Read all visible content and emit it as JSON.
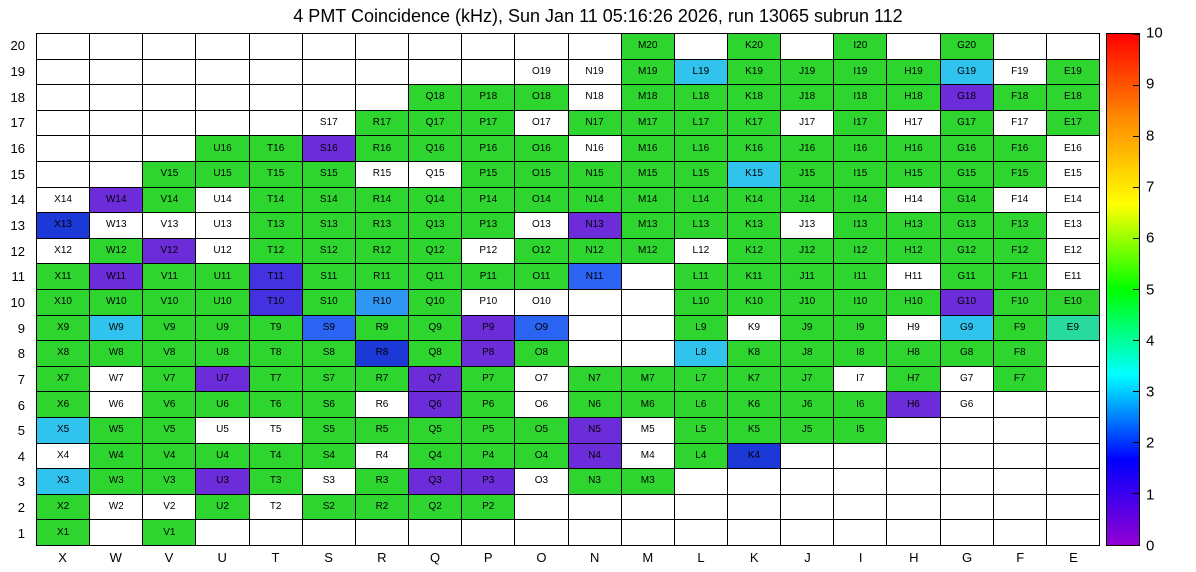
{
  "title": "4 PMT Coincidence (kHz), Sun Jan 11 05:16:26 2026, run 13065 subrun 112",
  "chart_data": {
    "type": "heatmap",
    "title": "4 PMT Coincidence (kHz), Sun Jan 11 05:16:26 2026, run 13065 subrun 112",
    "xlabel": "",
    "ylabel": "",
    "units": "kHz",
    "grid_lines": true,
    "legend_position": "right-colorbar",
    "columns": [
      "X",
      "W",
      "V",
      "U",
      "T",
      "S",
      "R",
      "Q",
      "P",
      "O",
      "N",
      "M",
      "L",
      "K",
      "J",
      "I",
      "H",
      "G",
      "F",
      "E"
    ],
    "colorbar": {
      "min": 0,
      "max": 10,
      "ticks": [
        0,
        1,
        2,
        3,
        4,
        5,
        6,
        7,
        8,
        9,
        10
      ],
      "gradient_stops": [
        "#9400d3",
        "#0000ff",
        "#00ffff",
        "#00ff00",
        "#ffff00",
        "#ff8c00",
        "#ff0000"
      ]
    },
    "classes": {
      "g": {
        "name": "green",
        "color": "#2ed52e",
        "value": 5.5
      },
      "t": {
        "name": "teal",
        "color": "#28d9a0",
        "value": 4.0
      },
      "c": {
        "name": "cyan",
        "color": "#2fc3ee",
        "value": 3.0
      },
      "s": {
        "name": "sky-blue",
        "color": "#2f96f2",
        "value": 2.5
      },
      "b": {
        "name": "blue",
        "color": "#2b63f2",
        "value": 2.0
      },
      "n": {
        "name": "dark-blue",
        "color": "#1c39d8",
        "value": 1.5
      },
      "i": {
        "name": "indigo",
        "color": "#4431e0",
        "value": 1.0
      },
      "v": {
        "name": "violet",
        "color": "#6d2cd9",
        "value": 0.5
      },
      "w": {
        "name": "white",
        "color": "#ffffff",
        "value": 0
      }
    },
    "rows": [
      {
        "y": 20,
        "cells": [
          null,
          null,
          null,
          null,
          null,
          null,
          null,
          null,
          null,
          null,
          null,
          "g",
          null,
          "g",
          null,
          "g",
          null,
          "g",
          null,
          null
        ]
      },
      {
        "y": 19,
        "cells": [
          null,
          null,
          null,
          null,
          null,
          null,
          null,
          null,
          null,
          "w",
          "w",
          "g",
          "c",
          "g",
          "g",
          "g",
          "g",
          "c",
          "w",
          "g"
        ]
      },
      {
        "y": 18,
        "cells": [
          null,
          null,
          null,
          null,
          null,
          null,
          null,
          "g",
          "g",
          "g",
          "w",
          "g",
          "g",
          "g",
          "g",
          "g",
          "g",
          "v",
          "g",
          "g"
        ]
      },
      {
        "y": 17,
        "cells": [
          null,
          null,
          null,
          null,
          null,
          "w",
          "g",
          "g",
          "g",
          "w",
          "g",
          "g",
          "g",
          "g",
          "w",
          "g",
          "w",
          "g",
          "w",
          "g"
        ]
      },
      {
        "y": 16,
        "cells": [
          null,
          null,
          null,
          "g",
          "g",
          "v",
          "g",
          "g",
          "g",
          "g",
          "w",
          "g",
          "g",
          "g",
          "g",
          "g",
          "g",
          "g",
          "g",
          "w"
        ]
      },
      {
        "y": 15,
        "cells": [
          null,
          null,
          "g",
          "g",
          "g",
          "g",
          "w",
          "w",
          "g",
          "g",
          "g",
          "g",
          "g",
          "c",
          "g",
          "g",
          "g",
          "g",
          "g",
          "w"
        ]
      },
      {
        "y": 14,
        "cells": [
          "w",
          "v",
          "g",
          "w",
          "g",
          "g",
          "g",
          "g",
          "g",
          "g",
          "g",
          "g",
          "g",
          "g",
          "g",
          "g",
          "w",
          "g",
          "w",
          "w"
        ]
      },
      {
        "y": 13,
        "cells": [
          "n",
          "w",
          "w",
          "w",
          "g",
          "g",
          "g",
          "g",
          "g",
          "w",
          "v",
          "g",
          "g",
          "g",
          "w",
          "g",
          "g",
          "g",
          "g",
          "w"
        ]
      },
      {
        "y": 12,
        "cells": [
          "w",
          "g",
          "v",
          "w",
          "g",
          "g",
          "g",
          "g",
          "w",
          "g",
          "g",
          "g",
          "w",
          "g",
          "g",
          "g",
          "g",
          "g",
          "g",
          "w"
        ]
      },
      {
        "y": 11,
        "cells": [
          "g",
          "v",
          "g",
          "g",
          "i",
          "g",
          "g",
          "g",
          "g",
          "g",
          "b",
          null,
          "g",
          "g",
          "g",
          "g",
          "w",
          "g",
          "g",
          "w"
        ]
      },
      {
        "y": 10,
        "cells": [
          "g",
          "g",
          "g",
          "g",
          "i",
          "g",
          "s",
          "g",
          "w",
          "w",
          null,
          null,
          "g",
          "g",
          "g",
          "g",
          "g",
          "v",
          "g",
          "g"
        ]
      },
      {
        "y": 9,
        "cells": [
          "g",
          "c",
          "g",
          "g",
          "g",
          "b",
          "g",
          "g",
          "v",
          "b",
          null,
          null,
          "g",
          "w",
          "g",
          "g",
          "w",
          "c",
          "g",
          "t"
        ]
      },
      {
        "y": 8,
        "cells": [
          "g",
          "g",
          "g",
          "g",
          "g",
          "g",
          "n",
          "g",
          "v",
          "g",
          null,
          null,
          "c",
          "g",
          "g",
          "g",
          "g",
          "g",
          "g",
          null
        ]
      },
      {
        "y": 7,
        "cells": [
          "g",
          "w",
          "g",
          "v",
          "g",
          "g",
          "g",
          "v",
          "g",
          "w",
          "g",
          "g",
          "g",
          "g",
          "g",
          "w",
          "g",
          "w",
          "g",
          null
        ]
      },
      {
        "y": 6,
        "cells": [
          "g",
          "w",
          "g",
          "g",
          "g",
          "g",
          "w",
          "v",
          "g",
          "w",
          "g",
          "g",
          "g",
          "g",
          "g",
          "g",
          "v",
          "w",
          null,
          null
        ]
      },
      {
        "y": 5,
        "cells": [
          "c",
          "g",
          "g",
          "w",
          "w",
          "g",
          "g",
          "g",
          "g",
          "g",
          "v",
          "w",
          "g",
          "g",
          "g",
          "g",
          null,
          null,
          null,
          null
        ]
      },
      {
        "y": 4,
        "cells": [
          "w",
          "g",
          "g",
          "g",
          "g",
          "g",
          "w",
          "g",
          "g",
          "g",
          "v",
          "w",
          "g",
          "n",
          null,
          null,
          null,
          null,
          null,
          null
        ]
      },
      {
        "y": 3,
        "cells": [
          "c",
          "g",
          "g",
          "v",
          "g",
          "w",
          "g",
          "v",
          "v",
          "w",
          "g",
          "g",
          null,
          null,
          null,
          null,
          null,
          null,
          null,
          null
        ]
      },
      {
        "y": 2,
        "cells": [
          "g",
          "w",
          "w",
          "g",
          "w",
          "g",
          "g",
          "g",
          "g",
          null,
          null,
          null,
          null,
          null,
          null,
          null,
          null,
          null,
          null,
          null
        ]
      },
      {
        "y": 1,
        "cells": [
          "g",
          null,
          "g",
          null,
          null,
          null,
          null,
          null,
          null,
          null,
          null,
          null,
          null,
          null,
          null,
          null,
          null,
          null,
          null,
          null
        ]
      }
    ]
  }
}
